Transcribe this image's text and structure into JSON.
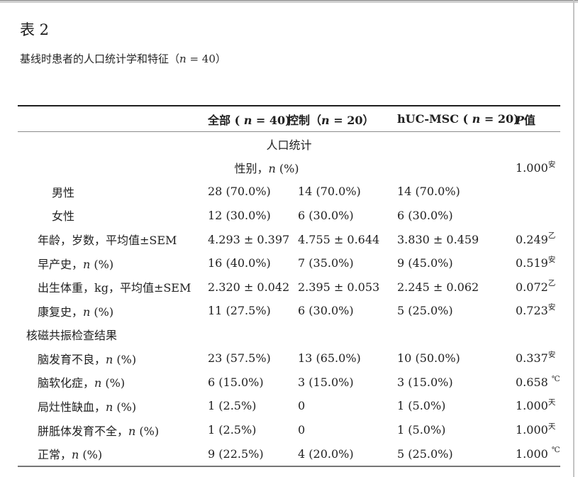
{
  "window": {
    "top_border_color": "#8e8e8e",
    "right_border_color": "#c4c4c4"
  },
  "doc": {
    "title": "表 2",
    "subtitle": {
      "pre": "基线时患者的人口统计学和特征（",
      "it": "n",
      "post": " = 40）"
    }
  },
  "table": {
    "columns": [
      {
        "pre": "全部 ( ",
        "it": "n",
        "post": " = 40)"
      },
      {
        "pre": "控制（",
        "it": "n",
        "post": " = 20）"
      },
      {
        "pre": "hUC-MSC ( ",
        "it": "n",
        "post": " = 20)"
      },
      {
        "pre": "",
        "it": "P",
        "post": "值"
      }
    ],
    "rows": [
      {
        "type": "center",
        "label": {
          "pre": "人口统计"
        }
      },
      {
        "type": "span4",
        "label": {
          "pre": "性别，",
          "it": "n",
          "post": " (%)"
        },
        "p": {
          "val": "1.000",
          "sup": "安"
        }
      },
      {
        "type": "item",
        "indent": 2,
        "label": {
          "pre": "男性"
        },
        "cells": [
          "28 (70.0%)",
          "14 (70.0%)",
          "14 (70.0%)"
        ]
      },
      {
        "type": "item",
        "indent": 2,
        "label": {
          "pre": "女性"
        },
        "cells": [
          "12 (30.0%)",
          "6 (30.0%)",
          "6 (30.0%)"
        ]
      },
      {
        "type": "item",
        "indent": 1,
        "label": {
          "pre": "年龄，岁数，平均值±SEM"
        },
        "cells": [
          "4.293 ± 0.397",
          "4.755 ± 0.644",
          "3.830 ± 0.459"
        ],
        "p": {
          "val": "0.249",
          "sup": "乙"
        }
      },
      {
        "type": "item",
        "indent": 1,
        "label": {
          "pre": "早产史，",
          "it": "n",
          "post": " (%)"
        },
        "cells": [
          "16 (40.0%)",
          "7 (35.0%)",
          "9 (45.0%)"
        ],
        "p": {
          "val": "0.519",
          "sup": "安"
        }
      },
      {
        "type": "item",
        "indent": 1,
        "label": {
          "pre": "出生体重，kg，平均值±SEM"
        },
        "cells": [
          "2.320 ± 0.042",
          "2.395 ± 0.053",
          "2.245 ± 0.062"
        ],
        "p": {
          "val": "0.072",
          "sup": "乙"
        }
      },
      {
        "type": "item",
        "indent": 1,
        "label": {
          "pre": "康复史，",
          "it": "n",
          "post": " (%)"
        },
        "cells": [
          "11 (27.5%)",
          "6 (30.0%)",
          "5 (25.0%)"
        ],
        "p": {
          "val": "0.723",
          "sup": "安"
        }
      },
      {
        "type": "section",
        "label": {
          "pre": "核磁共振检查结果"
        }
      },
      {
        "type": "item",
        "indent": 1,
        "label": {
          "pre": "脑发育不良，",
          "it": "n",
          "post": " (%)"
        },
        "cells": [
          "23 (57.5%)",
          "13 (65.0%)",
          "10 (50.0%)"
        ],
        "p": {
          "val": "0.337",
          "sup": "安"
        }
      },
      {
        "type": "item",
        "indent": 1,
        "label": {
          "pre": "脑软化症，",
          "it": "n",
          "post": " (%)"
        },
        "cells": [
          "6 (15.0%)",
          "3 (15.0%)",
          "3 (15.0%)"
        ],
        "p": {
          "val": "0.658 ",
          "sup": "℃"
        }
      },
      {
        "type": "item",
        "indent": 1,
        "label": {
          "pre": "局灶性缺血，",
          "it": "n",
          "post": " (%)"
        },
        "cells": [
          "1 (2.5%)",
          "0",
          "1 (5.0%)"
        ],
        "p": {
          "val": "1.000",
          "sup": "天"
        }
      },
      {
        "type": "item",
        "indent": 1,
        "label": {
          "pre": "胼胝体发育不全，",
          "it": "n",
          "post": " (%)"
        },
        "cells": [
          "1 (2.5%)",
          "0",
          "1 (5.0%)"
        ],
        "p": {
          "val": "1.000",
          "sup": "天"
        }
      },
      {
        "type": "item",
        "indent": 1,
        "label": {
          "pre": "正常，",
          "it": "n",
          "post": " (%)"
        },
        "cells": [
          "9 (22.5%)",
          "4 (20.0%)",
          "5 (25.0%)"
        ],
        "p": {
          "val": "1.000 ",
          "sup": "℃"
        }
      }
    ]
  }
}
